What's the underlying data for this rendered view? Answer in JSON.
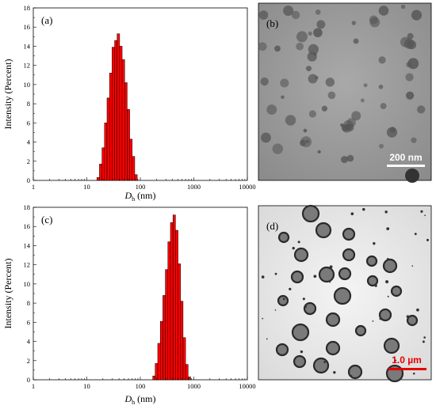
{
  "chart_data": [
    {
      "panel_label": "(a)",
      "type": "bar",
      "xscale": "log",
      "xlim": [
        1,
        10000
      ],
      "ylim": [
        0,
        18
      ],
      "xticks": [
        "1",
        "10",
        "100",
        "1000",
        "10000"
      ],
      "yticks": [
        "0",
        "2",
        "4",
        "6",
        "8",
        "10",
        "12",
        "14",
        "16",
        "18"
      ],
      "ylabel": "Intensity (Percent)",
      "xlabel": "D",
      "xlabel_sub": "h",
      "xlabel_unit": " (nm)",
      "bar_color": "#ff0000",
      "x": [
        16.3,
        18.2,
        20.3,
        22.6,
        25.2,
        28.1,
        31.3,
        34.9,
        38.9,
        43.3,
        48.3,
        53.8,
        60.0,
        66.8,
        74.5,
        83.0
      ],
      "values": [
        0.3,
        1.7,
        3.4,
        6.0,
        8.6,
        11.2,
        13.9,
        14.6,
        15.3,
        14.0,
        12.6,
        10.2,
        7.4,
        4.3,
        2.5,
        0.6
      ]
    },
    {
      "panel_label": "(c)",
      "type": "bar",
      "xscale": "log",
      "xlim": [
        1,
        10000
      ],
      "ylim": [
        0,
        18
      ],
      "xticks": [
        "1",
        "10",
        "100",
        "1000",
        "10000"
      ],
      "yticks": [
        "0",
        "2",
        "4",
        "6",
        "8",
        "10",
        "12",
        "14",
        "16",
        "18"
      ],
      "ylabel": "Intensity (Percent)",
      "xlabel": "D",
      "xlabel_sub": "h",
      "xlabel_unit": " (nm)",
      "bar_color": "#ff0000",
      "x": [
        180,
        200,
        224,
        250,
        278,
        310,
        346,
        386,
        430,
        480,
        535,
        596,
        664,
        741,
        826
      ],
      "values": [
        0.4,
        1.7,
        3.8,
        6.1,
        8.8,
        11.5,
        14.4,
        16.4,
        17.2,
        15.6,
        12.1,
        8.2,
        4.4,
        1.6,
        0.3
      ]
    }
  ],
  "micrographs": [
    {
      "panel_label": "(b)",
      "scale_bar_text": "200 nm",
      "scale_bar_color": "#ffffff",
      "background": "#9a9a9a"
    },
    {
      "panel_label": "(d)",
      "scale_bar_text": "1.0 µm",
      "scale_bar_color": "#e60000",
      "background": "#ececec"
    }
  ]
}
